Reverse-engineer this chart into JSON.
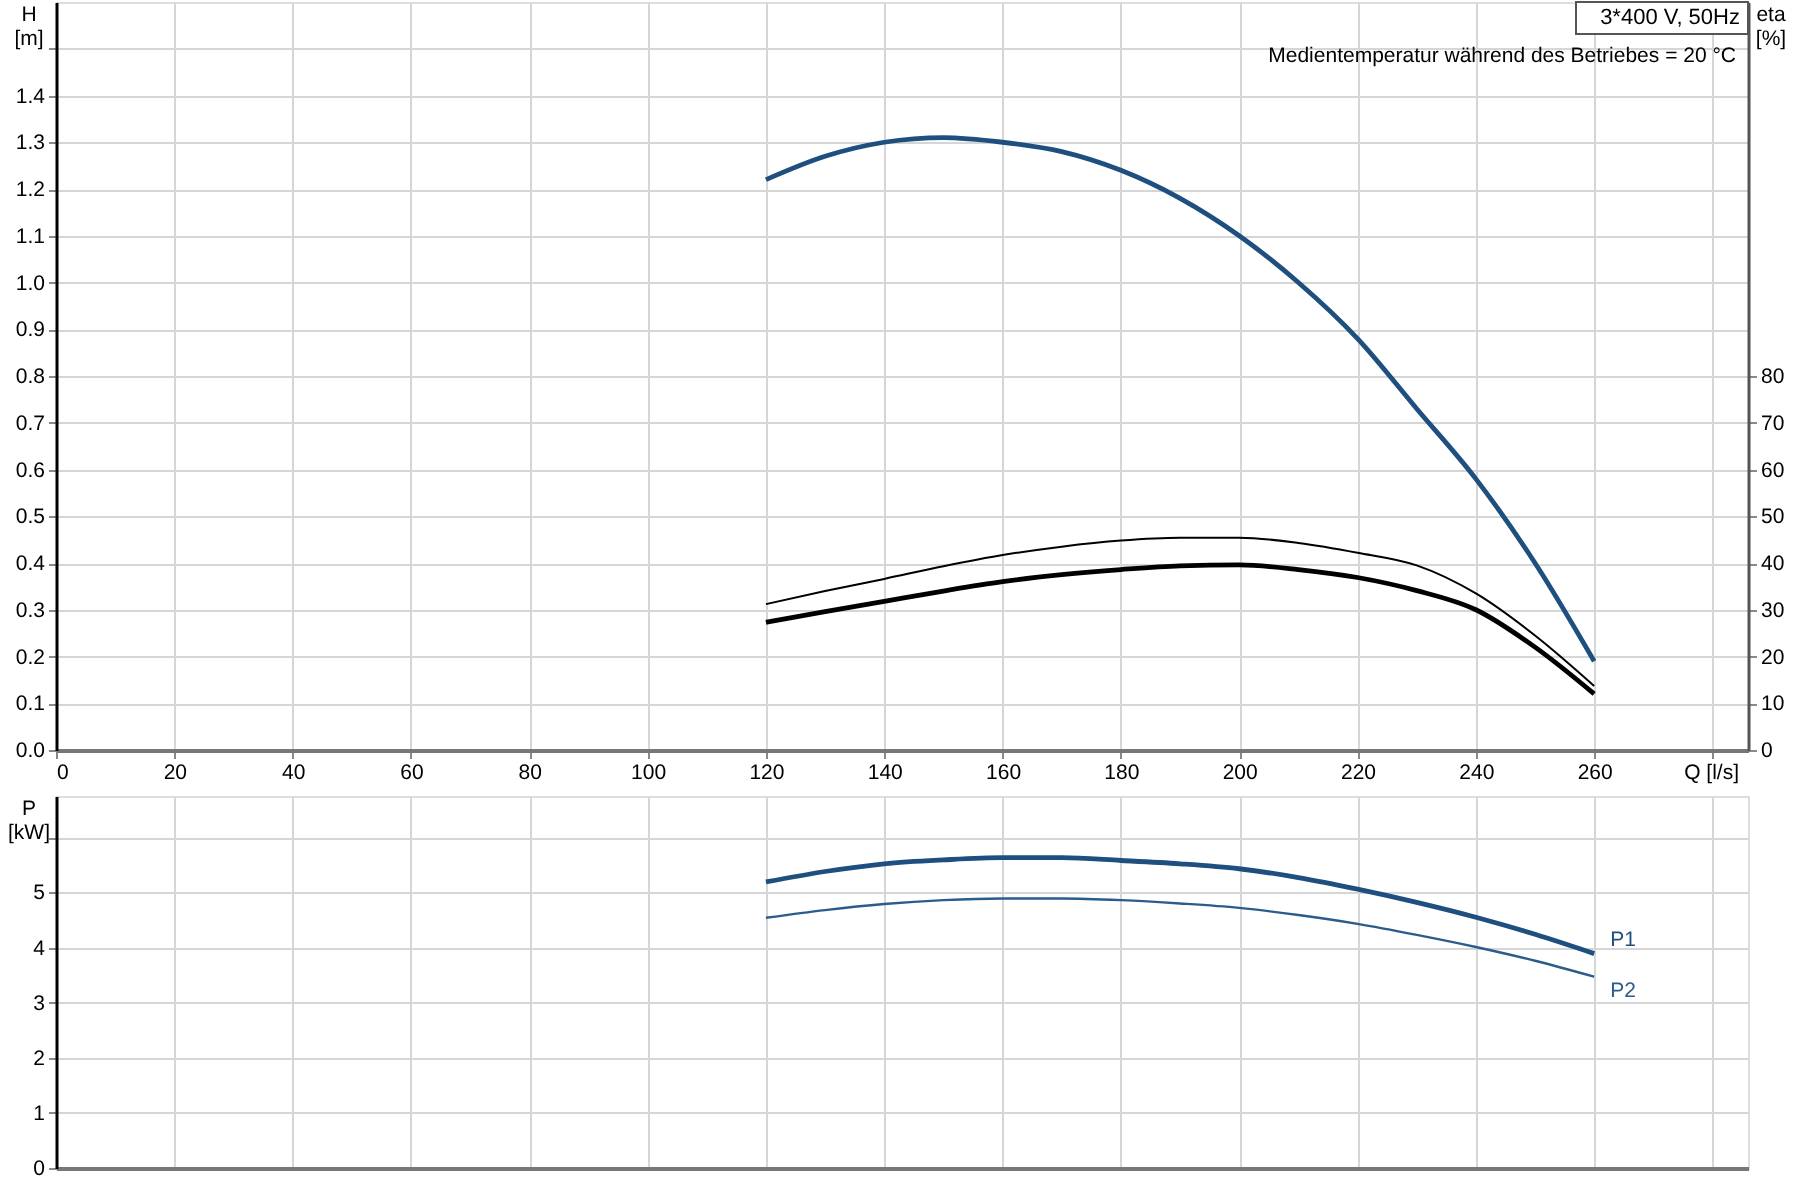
{
  "chart_data": [
    {
      "type": "line",
      "title": "3*400 V, 50Hz",
      "annotations": [
        "Medientemperatur während des Betriebes = 20 °C"
      ],
      "xlabel": "Q [l/s]",
      "ylabel": "H [m]",
      "y2label": "eta [%]",
      "x": [
        120,
        130,
        140,
        150,
        160,
        170,
        180,
        190,
        200,
        210,
        220,
        230,
        240,
        250,
        260
      ],
      "series": [
        {
          "color": "#1f4f7f",
          "values": [
            1.22,
            1.27,
            1.3,
            1.31,
            1.3,
            1.28,
            1.24,
            1.18,
            1.1,
            1.0,
            0.88,
            0.73,
            0.58,
            0.4,
            0.19
          ]
        },
        {
          "color": "#000000",
          "axis": "y2",
          "values": [
            31.2,
            34.0,
            36.6,
            39.3,
            41.7,
            43.5,
            44.8,
            45.4,
            45.4,
            44.3,
            42.2,
            39.5,
            33.5,
            24.5,
            13.7
          ]
        },
        {
          "color": "#000000",
          "axis": "y2",
          "values": [
            27.3,
            29.6,
            31.8,
            34.0,
            36.0,
            37.5,
            38.6,
            39.4,
            39.6,
            38.6,
            36.9,
            34.1,
            30.0,
            22.0,
            12.0
          ]
        }
      ],
      "xlim": [
        0,
        286
      ],
      "xticks": [
        0,
        20,
        40,
        60,
        80,
        100,
        120,
        140,
        160,
        180,
        200,
        220,
        240,
        260,
        {
          "value": 280,
          "label": null
        }
      ],
      "ylim": [
        0,
        1.6
      ],
      "yticks": [
        {
          "value": 0,
          "label": "0.0"
        },
        0.1,
        0.2,
        0.3,
        0.4,
        0.5,
        0.6,
        0.7,
        0.8,
        0.9,
        {
          "value": 1,
          "label": "1.0"
        },
        1.1,
        1.2,
        1.3,
        1.4,
        {
          "value": 1.5,
          "label": null
        }
      ],
      "y2lim": [
        0,
        160
      ],
      "y2ticks": [
        0,
        10,
        20,
        30,
        40,
        50,
        60,
        70,
        80
      ],
      "grid": true
    },
    {
      "type": "line",
      "ylabel": "P [kW]",
      "x": [
        120,
        130,
        140,
        150,
        160,
        170,
        180,
        190,
        200,
        210,
        220,
        230,
        240,
        250,
        260
      ],
      "series": [
        {
          "name": "P1",
          "color": "#1f4f7f",
          "values": [
            5.19,
            5.38,
            5.52,
            5.59,
            5.63,
            5.63,
            5.58,
            5.52,
            5.43,
            5.27,
            5.06,
            4.82,
            4.55,
            4.24,
            3.89
          ]
        },
        {
          "name": "P2",
          "color": "#2b5c8c",
          "values": [
            4.54,
            4.68,
            4.79,
            4.86,
            4.89,
            4.89,
            4.86,
            4.8,
            4.72,
            4.59,
            4.43,
            4.23,
            4.01,
            3.76,
            3.47
          ]
        }
      ],
      "xlim": [
        0,
        286
      ],
      "xticks": [
        0,
        20,
        40,
        60,
        80,
        100,
        120,
        140,
        160,
        180,
        200,
        220,
        240,
        260,
        280
      ],
      "ylim": [
        0,
        6.75
      ],
      "yticks": [
        0,
        1,
        2,
        3,
        4,
        5,
        {
          "value": 6,
          "label": null
        }
      ],
      "tick_labels": "y",
      "grid": true
    }
  ]
}
